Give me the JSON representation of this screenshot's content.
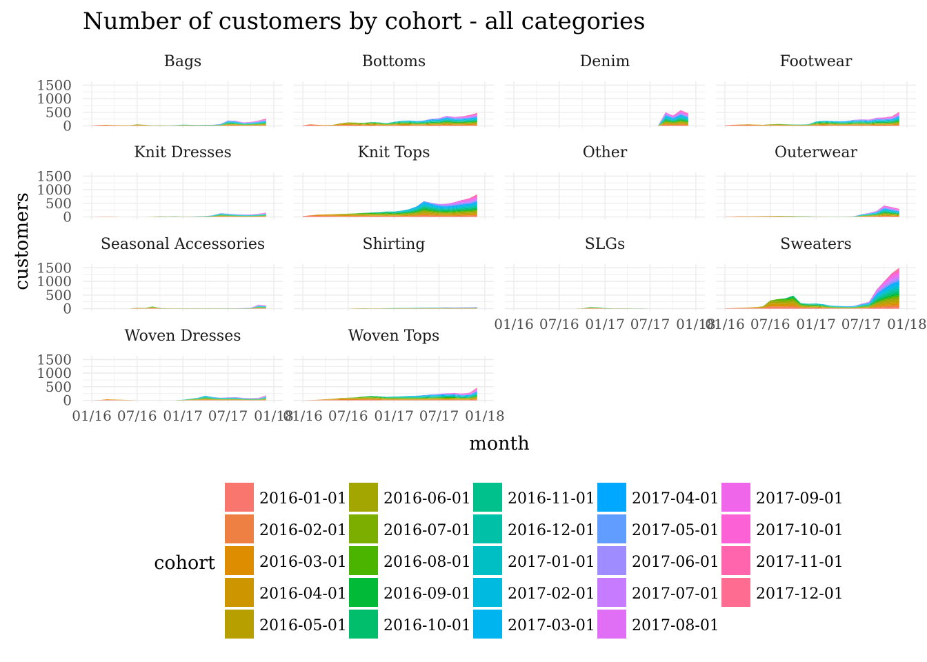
{
  "chart_data": {
    "type": "area",
    "title": "Number of customers by cohort - all categories",
    "xlabel": "month",
    "ylabel": "customers",
    "x_range": [
      "2016-01-01",
      "2018-01-01"
    ],
    "ylim": [
      0,
      1550
    ],
    "y_ticks": [
      0,
      500,
      1000,
      1500
    ],
    "x_tick_labels": [
      "01/16",
      "07/16",
      "01/17",
      "07/17",
      "01/18"
    ],
    "grid": true,
    "stacked": true,
    "legend": {
      "title": "cohort",
      "position": "bottom",
      "columns": 5,
      "entries": [
        {
          "label": "2016-01-01",
          "color": "#F8766D"
        },
        {
          "label": "2016-02-01",
          "color": "#EE8044"
        },
        {
          "label": "2016-03-01",
          "color": "#DE8C00"
        },
        {
          "label": "2016-04-01",
          "color": "#CD9600"
        },
        {
          "label": "2016-05-01",
          "color": "#B79F00"
        },
        {
          "label": "2016-06-01",
          "color": "#A3A500"
        },
        {
          "label": "2016-07-01",
          "color": "#7CAE00"
        },
        {
          "label": "2016-08-01",
          "color": "#4BB400"
        },
        {
          "label": "2016-09-01",
          "color": "#00BA38"
        },
        {
          "label": "2016-10-01",
          "color": "#00BE6C"
        },
        {
          "label": "2016-11-01",
          "color": "#00C08B"
        },
        {
          "label": "2016-12-01",
          "color": "#00C1A7"
        },
        {
          "label": "2017-01-01",
          "color": "#00BFC4"
        },
        {
          "label": "2017-02-01",
          "color": "#00BAE0"
        },
        {
          "label": "2017-03-01",
          "color": "#00B4F0"
        },
        {
          "label": "2017-04-01",
          "color": "#00A9FF"
        },
        {
          "label": "2017-05-01",
          "color": "#619CFF"
        },
        {
          "label": "2017-06-01",
          "color": "#9F8CFF"
        },
        {
          "label": "2017-07-01",
          "color": "#C77CFF"
        },
        {
          "label": "2017-08-01",
          "color": "#E06FF6"
        },
        {
          "label": "2017-09-01",
          "color": "#F066EA"
        },
        {
          "label": "2017-10-01",
          "color": "#FC61D5"
        },
        {
          "label": "2017-11-01",
          "color": "#FF65AC"
        },
        {
          "label": "2017-12-01",
          "color": "#FF6C91"
        }
      ]
    },
    "panels": [
      {
        "name": "Bags",
        "totals": [
          0,
          0,
          0,
          0,
          0,
          0,
          0,
          0,
          0,
          0,
          0,
          5,
          10,
          30,
          40,
          30,
          25,
          20,
          60,
          40,
          15,
          20,
          15,
          20,
          45,
          40,
          30,
          40,
          40,
          70,
          200,
          190,
          130,
          150,
          200,
          270
        ]
      },
      {
        "name": "Bottoms",
        "totals": [
          0,
          0,
          0,
          0,
          0,
          0,
          0,
          0,
          0,
          0,
          0,
          10,
          20,
          60,
          40,
          30,
          40,
          100,
          130,
          120,
          110,
          140,
          130,
          100,
          150,
          190,
          200,
          180,
          200,
          260,
          280,
          370,
          330,
          350,
          400,
          480
        ]
      },
      {
        "name": "Denim",
        "totals": [
          0,
          0,
          0,
          0,
          0,
          0,
          0,
          0,
          0,
          0,
          0,
          0,
          0,
          0,
          0,
          0,
          0,
          0,
          0,
          0,
          0,
          0,
          0,
          0,
          0,
          0,
          0,
          0,
          0,
          0,
          0,
          0,
          500,
          380,
          580,
          460
        ]
      },
      {
        "name": "Footwear",
        "totals": [
          0,
          0,
          0,
          0,
          0,
          0,
          0,
          0,
          0,
          0,
          0,
          0,
          20,
          40,
          50,
          60,
          50,
          40,
          60,
          70,
          60,
          50,
          50,
          60,
          160,
          190,
          180,
          170,
          180,
          220,
          240,
          230,
          300,
          310,
          350,
          520
        ]
      },
      {
        "name": "Knit Dresses",
        "totals": [
          0,
          0,
          0,
          0,
          0,
          0,
          0,
          0,
          0,
          0,
          0,
          0,
          0,
          5,
          10,
          5,
          0,
          0,
          0,
          0,
          5,
          20,
          15,
          20,
          10,
          10,
          20,
          30,
          60,
          140,
          120,
          100,
          90,
          90,
          120,
          160
        ]
      },
      {
        "name": "Knit Tops",
        "totals": [
          0,
          0,
          0,
          0,
          0,
          0,
          0,
          0,
          0,
          0,
          0,
          15,
          30,
          60,
          80,
          90,
          100,
          110,
          120,
          130,
          150,
          160,
          170,
          200,
          200,
          230,
          280,
          380,
          580,
          520,
          470,
          480,
          540,
          620,
          690,
          830
        ]
      },
      {
        "name": "Other",
        "totals": []
      },
      {
        "name": "Outerwear",
        "totals": [
          0,
          0,
          0,
          0,
          0,
          0,
          0,
          0,
          0,
          0,
          0,
          0,
          5,
          15,
          25,
          20,
          25,
          30,
          35,
          40,
          35,
          30,
          25,
          20,
          10,
          10,
          5,
          5,
          10,
          20,
          100,
          150,
          220,
          420,
          360,
          300
        ]
      },
      {
        "name": "Seasonal Accessories",
        "totals": [
          0,
          0,
          0,
          0,
          0,
          0,
          0,
          0,
          0,
          0,
          0,
          0,
          0,
          0,
          0,
          0,
          0,
          0,
          30,
          20,
          80,
          20,
          10,
          10,
          10,
          10,
          10,
          10,
          10,
          10,
          10,
          10,
          20,
          30,
          150,
          120
        ]
      },
      {
        "name": "Shirting",
        "totals": [
          0,
          0,
          0,
          0,
          0,
          0,
          0,
          0,
          0,
          0,
          0,
          0,
          0,
          0,
          0,
          0,
          0,
          0,
          0,
          10,
          15,
          10,
          10,
          15,
          20,
          25,
          25,
          30,
          35,
          40,
          40,
          45,
          40,
          45,
          50,
          60
        ]
      },
      {
        "name": "SLGs",
        "totals": [
          0,
          0,
          0,
          0,
          0,
          0,
          0,
          0,
          0,
          0,
          0,
          0,
          0,
          0,
          0,
          0,
          0,
          0,
          0,
          0,
          0,
          10,
          60,
          50,
          20,
          10,
          10,
          10,
          5,
          5,
          0,
          0,
          0,
          0,
          0,
          0
        ]
      },
      {
        "name": "Sweaters",
        "totals": [
          0,
          0,
          0,
          0,
          0,
          0,
          0,
          0,
          0,
          0,
          0,
          5,
          10,
          20,
          30,
          40,
          60,
          80,
          300,
          350,
          380,
          480,
          200,
          180,
          190,
          160,
          110,
          100,
          90,
          100,
          180,
          250,
          700,
          1000,
          1300,
          1500
        ]
      },
      {
        "name": "Woven Dresses",
        "totals": [
          0,
          0,
          0,
          0,
          0,
          0,
          0,
          0,
          0,
          0,
          0,
          0,
          0,
          10,
          40,
          30,
          20,
          10,
          0,
          0,
          0,
          0,
          0,
          0,
          20,
          60,
          90,
          170,
          120,
          100,
          110,
          120,
          90,
          80,
          90,
          190
        ]
      },
      {
        "name": "Woven Tops",
        "totals": [
          0,
          0,
          0,
          0,
          0,
          0,
          0,
          0,
          0,
          0,
          0,
          0,
          0,
          10,
          20,
          40,
          60,
          80,
          100,
          110,
          140,
          160,
          150,
          130,
          140,
          150,
          160,
          170,
          190,
          220,
          240,
          260,
          270,
          250,
          280,
          470
        ]
      }
    ]
  }
}
